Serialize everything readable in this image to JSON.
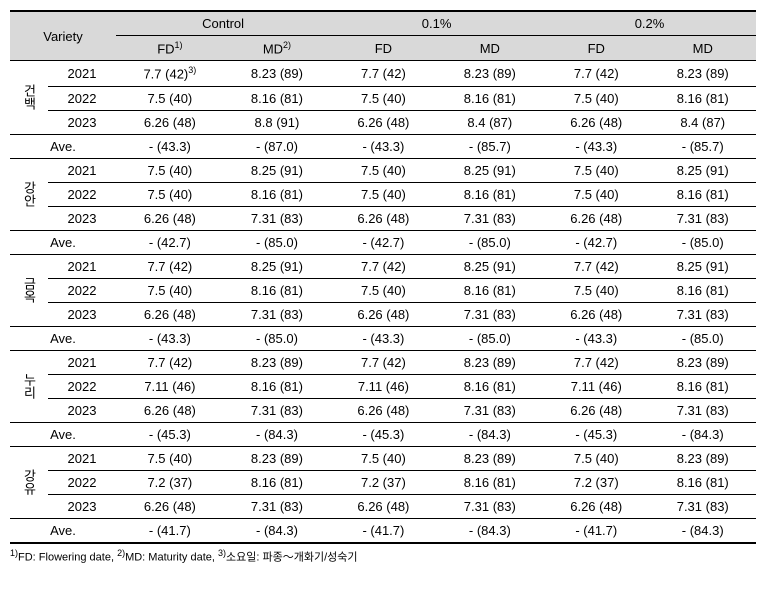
{
  "headers": {
    "variety": "Variety",
    "control": "Control",
    "p01": "0.1%",
    "p02": "0.2%",
    "fd": "FD",
    "md": "MD",
    "fd_sup": "1)",
    "md_sup": "2)",
    "cell_sup": "3)"
  },
  "footnote": {
    "fd": "FD: Flowering date,",
    "md": "MD: Maturity date,",
    "note": "소요일: 파종～개화기/성숙기",
    "sup1": "1)",
    "sup2": "2)",
    "sup3": "3)"
  },
  "varieties": [
    {
      "name": "건백",
      "rows": [
        {
          "year": "2021",
          "c_fd": "7.7 (42)",
          "c_md": "8.23 (89)",
          "p1_fd": "7.7 (42)",
          "p1_md": "8.23 (89)",
          "p2_fd": "7.7 (42)",
          "p2_md": "8.23 (89)",
          "sup": true
        },
        {
          "year": "2022",
          "c_fd": "7.5 (40)",
          "c_md": "8.16 (81)",
          "p1_fd": "7.5 (40)",
          "p1_md": "8.16 (81)",
          "p2_fd": "7.5 (40)",
          "p2_md": "8.16 (81)"
        },
        {
          "year": "2023",
          "c_fd": "6.26 (48)",
          "c_md": "8.8 (91)",
          "p1_fd": "6.26 (48)",
          "p1_md": "8.4 (87)",
          "p2_fd": "6.26 (48)",
          "p2_md": "8.4 (87)"
        }
      ],
      "ave": {
        "label": "Ave.",
        "c_fd": "- (43.3)",
        "c_md": "- (87.0)",
        "p1_fd": "- (43.3)",
        "p1_md": "- (85.7)",
        "p2_fd": "- (43.3)",
        "p2_md": "- (85.7)"
      }
    },
    {
      "name": "강안",
      "rows": [
        {
          "year": "2021",
          "c_fd": "7.5 (40)",
          "c_md": "8.25 (91)",
          "p1_fd": "7.5 (40)",
          "p1_md": "8.25 (91)",
          "p2_fd": "7.5 (40)",
          "p2_md": "8.25 (91)"
        },
        {
          "year": "2022",
          "c_fd": "7.5 (40)",
          "c_md": "8.16 (81)",
          "p1_fd": "7.5 (40)",
          "p1_md": "8.16 (81)",
          "p2_fd": "7.5 (40)",
          "p2_md": "8.16 (81)"
        },
        {
          "year": "2023",
          "c_fd": "6.26 (48)",
          "c_md": "7.31 (83)",
          "p1_fd": "6.26 (48)",
          "p1_md": "7.31 (83)",
          "p2_fd": "6.26 (48)",
          "p2_md": "7.31 (83)"
        }
      ],
      "ave": {
        "label": "Ave.",
        "c_fd": "- (42.7)",
        "c_md": "- (85.0)",
        "p1_fd": "- (42.7)",
        "p1_md": "- (85.0)",
        "p2_fd": "- (42.7)",
        "p2_md": "- (85.0)"
      }
    },
    {
      "name": "금옥",
      "rows": [
        {
          "year": "2021",
          "c_fd": "7.7 (42)",
          "c_md": "8.25 (91)",
          "p1_fd": "7.7 (42)",
          "p1_md": "8.25 (91)",
          "p2_fd": "7.7 (42)",
          "p2_md": "8.25 (91)"
        },
        {
          "year": "2022",
          "c_fd": "7.5 (40)",
          "c_md": "8.16 (81)",
          "p1_fd": "7.5 (40)",
          "p1_md": "8.16 (81)",
          "p2_fd": "7.5 (40)",
          "p2_md": "8.16 (81)"
        },
        {
          "year": "2023",
          "c_fd": "6.26 (48)",
          "c_md": "7.31 (83)",
          "p1_fd": "6.26 (48)",
          "p1_md": "7.31 (83)",
          "p2_fd": "6.26 (48)",
          "p2_md": "7.31 (83)"
        }
      ],
      "ave": {
        "label": "Ave.",
        "c_fd": "- (43.3)",
        "c_md": "- (85.0)",
        "p1_fd": "- (43.3)",
        "p1_md": "- (85.0)",
        "p2_fd": "- (43.3)",
        "p2_md": "- (85.0)"
      }
    },
    {
      "name": "누리",
      "rows": [
        {
          "year": "2021",
          "c_fd": "7.7 (42)",
          "c_md": "8.23 (89)",
          "p1_fd": "7.7 (42)",
          "p1_md": "8.23 (89)",
          "p2_fd": "7.7 (42)",
          "p2_md": "8.23 (89)"
        },
        {
          "year": "2022",
          "c_fd": "7.11 (46)",
          "c_md": "8.16 (81)",
          "p1_fd": "7.11 (46)",
          "p1_md": "8.16 (81)",
          "p2_fd": "7.11 (46)",
          "p2_md": "8.16 (81)"
        },
        {
          "year": "2023",
          "c_fd": "6.26 (48)",
          "c_md": "7.31 (83)",
          "p1_fd": "6.26 (48)",
          "p1_md": "7.31 (83)",
          "p2_fd": "6.26 (48)",
          "p2_md": "7.31 (83)"
        }
      ],
      "ave": {
        "label": "Ave.",
        "c_fd": "- (45.3)",
        "c_md": "- (84.3)",
        "p1_fd": "- (45.3)",
        "p1_md": "- (84.3)",
        "p2_fd": "- (45.3)",
        "p2_md": "- (84.3)"
      }
    },
    {
      "name": "강유",
      "rows": [
        {
          "year": "2021",
          "c_fd": "7.5 (40)",
          "c_md": "8.23 (89)",
          "p1_fd": "7.5 (40)",
          "p1_md": "8.23 (89)",
          "p2_fd": "7.5 (40)",
          "p2_md": "8.23 (89)"
        },
        {
          "year": "2022",
          "c_fd": "7.2 (37)",
          "c_md": "8.16 (81)",
          "p1_fd": "7.2 (37)",
          "p1_md": "8.16 (81)",
          "p2_fd": "7.2 (37)",
          "p2_md": "8.16 (81)"
        },
        {
          "year": "2023",
          "c_fd": "6.26 (48)",
          "c_md": "7.31 (83)",
          "p1_fd": "6.26 (48)",
          "p1_md": "7.31 (83)",
          "p2_fd": "6.26 (48)",
          "p2_md": "7.31 (83)"
        }
      ],
      "ave": {
        "label": "Ave.",
        "c_fd": "- (41.7)",
        "c_md": "- (84.3)",
        "p1_fd": "- (41.7)",
        "p1_md": "- (84.3)",
        "p2_fd": "- (41.7)",
        "p2_md": "- (84.3)"
      }
    }
  ]
}
